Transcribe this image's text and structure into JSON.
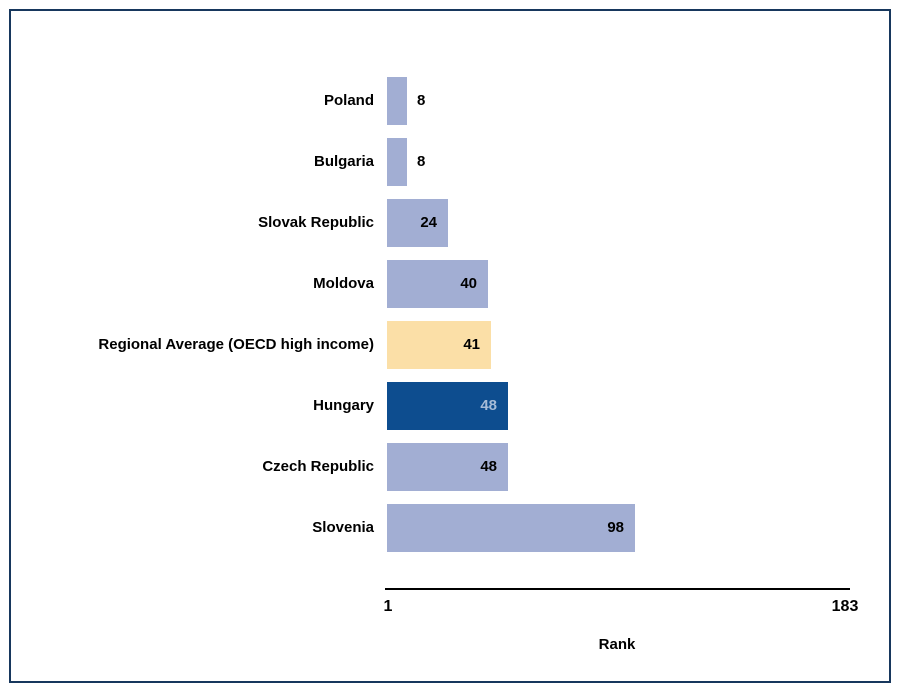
{
  "chart_data": {
    "type": "bar",
    "orientation": "horizontal",
    "title": "",
    "categories": [
      "Poland",
      "Bulgaria",
      "Slovak Republic",
      "Moldova",
      "Regional Average (OECD high income)",
      "Hungary",
      "Czech Republic",
      "Slovenia"
    ],
    "values": [
      8,
      8,
      24,
      40,
      41,
      48,
      48,
      98
    ],
    "bar_roles": [
      "default",
      "default",
      "default",
      "default",
      "average",
      "highlight",
      "default",
      "default"
    ],
    "xlabel": "Rank",
    "axis": {
      "min": 1,
      "max": 183,
      "min_label": "1",
      "max_label": "183"
    },
    "grid": false,
    "legend": false,
    "colors": {
      "default_bar": "#a2aed3",
      "average_bar": "#fbdfa7",
      "highlight_bar": "#0d4d8f",
      "default_value_text": "#000000",
      "highlight_value_text": "#a6bcd8",
      "axis_line": "#000000",
      "frame_border": "#17375d"
    }
  }
}
